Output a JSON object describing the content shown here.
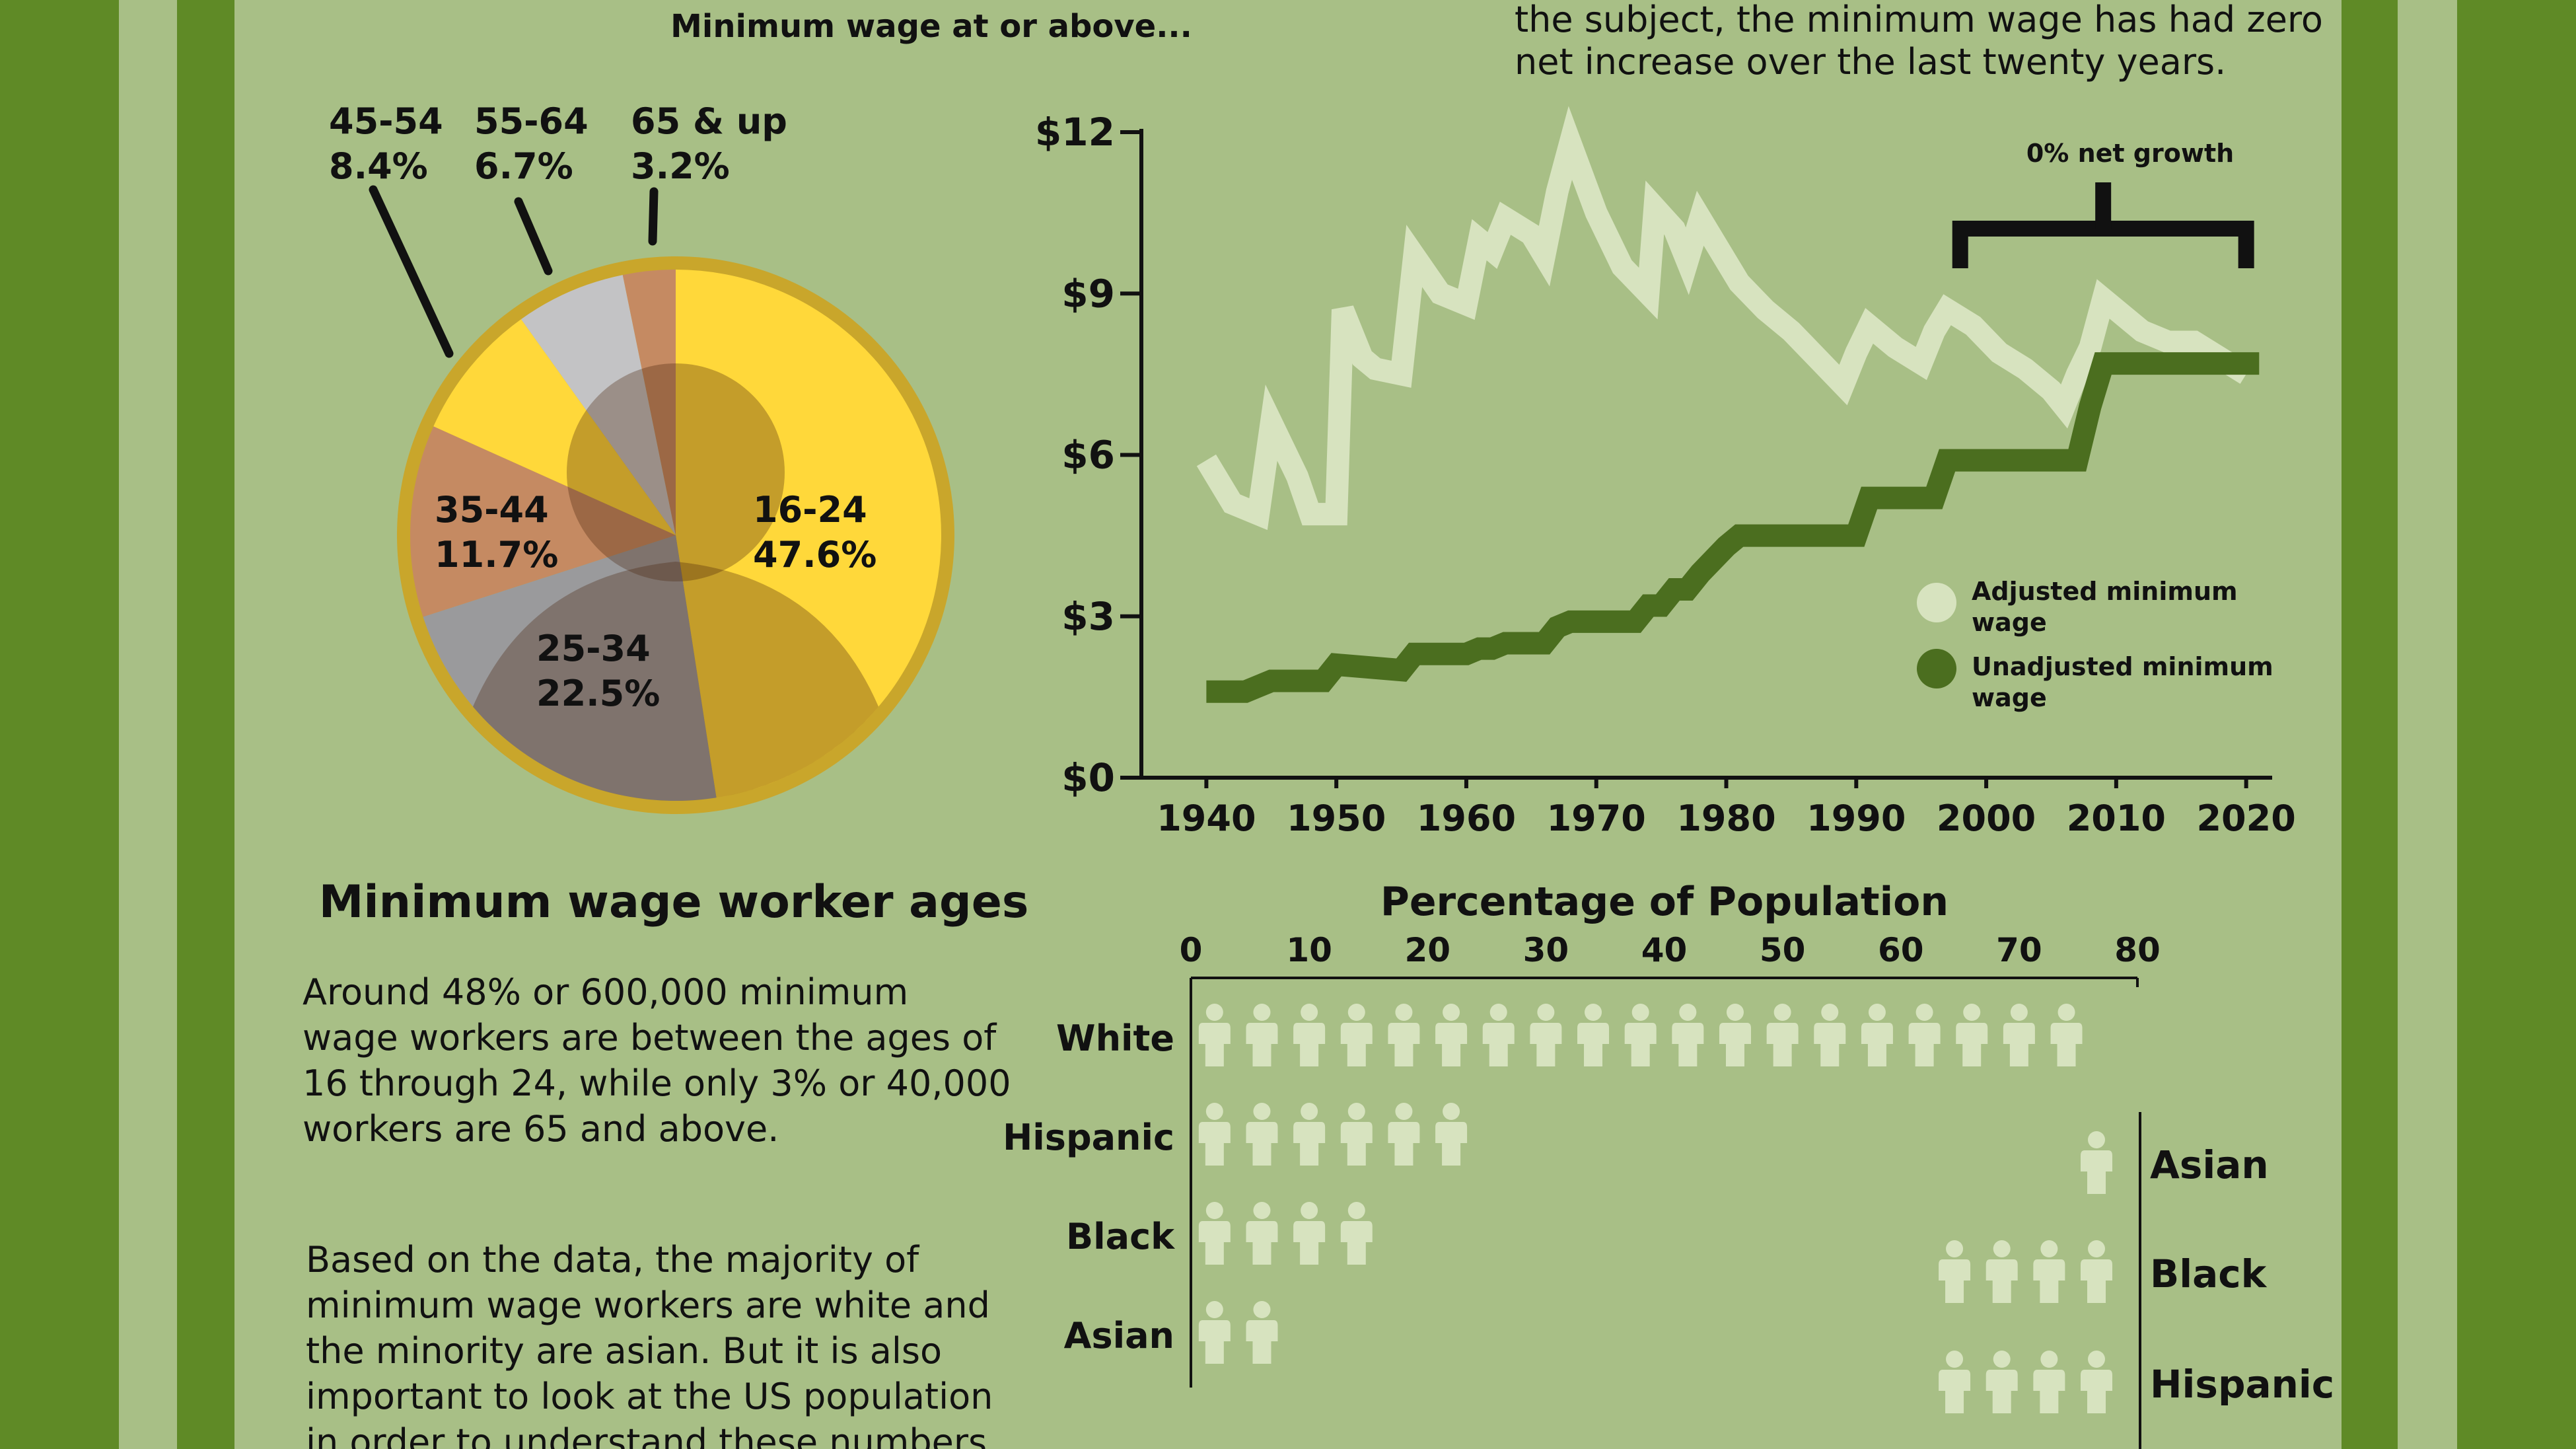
{
  "colors": {
    "background": "#a8bf86",
    "border_dark": "#5f8a26",
    "border_light": "#a8bf86",
    "adjusted_line": "#d7e3bf",
    "unadjusted_line": "#4b6e1f",
    "text": "#111111"
  },
  "header": {
    "pie_heading": "Minimum wage at or above...",
    "line_intro_line1": "the subject, the minimum wage has had zero",
    "line_intro_line2": "net increase over the last twenty years."
  },
  "pie": {
    "title": "Minimum wage worker ages",
    "labels": [
      {
        "age": "16-24",
        "pct": "47.6%"
      },
      {
        "age": "25-34",
        "pct": "22.5%"
      },
      {
        "age": "35-44",
        "pct": "11.7%"
      },
      {
        "age": "45-54",
        "pct": "8.4%"
      },
      {
        "age": "55-64",
        "pct": "6.7%"
      },
      {
        "age": "65 & up",
        "pct": "3.2%"
      }
    ]
  },
  "text_blocks": {
    "ages_lines": [
      "Around 48% or 600,000 minimum",
      "wage workers are between the ages of",
      "16 through 24, while only 3% or 40,000",
      "workers are 65 and above."
    ],
    "race_lines": [
      "Based on the data, the majority of",
      "minimum wage workers are white and",
      "the minority are asian. But it is also",
      "important to look at the US population",
      "in order to understand these numbers."
    ]
  },
  "line_annotation": "0% net growth",
  "bar_title": "Percentage of Population",
  "chart_data": [
    {
      "type": "pie",
      "title": "Minimum wage worker ages",
      "categories": [
        "16-24",
        "25-34",
        "35-44",
        "45-54",
        "55-64",
        "65 & up"
      ],
      "values": [
        47.6,
        22.5,
        11.7,
        8.4,
        6.7,
        3.2
      ],
      "colors": [
        "#ffd83a",
        "#9a9a9c",
        "#c58a62",
        "#ffd83a",
        "#c3c3c5",
        "#c58a62"
      ]
    },
    {
      "type": "line",
      "y_ticks": [
        "$0",
        "$3",
        "$6",
        "$9",
        "$12"
      ],
      "x_ticks": [
        "1940",
        "1950",
        "1960",
        "1970",
        "1980",
        "1990",
        "2000",
        "2010",
        "2020"
      ],
      "xlim": [
        1935,
        2022
      ],
      "ylim": [
        0,
        12
      ],
      "legend_position": "right",
      "series": [
        {
          "name": "Adjusted minimum wage",
          "color": "#d7e3bf",
          "points": [
            [
              1940,
              5.9
            ],
            [
              1942,
              5.1
            ],
            [
              1944,
              4.9
            ],
            [
              1945,
              6.6
            ],
            [
              1947,
              5.6
            ],
            [
              1948,
              4.9
            ],
            [
              1950,
              4.9
            ],
            [
              1950.5,
              8.7
            ],
            [
              1952,
              7.8
            ],
            [
              1953,
              7.6
            ],
            [
              1955,
              7.5
            ],
            [
              1956,
              9.7
            ],
            [
              1958,
              9.0
            ],
            [
              1960,
              8.8
            ],
            [
              1961,
              10.0
            ],
            [
              1962,
              9.8
            ],
            [
              1963,
              10.4
            ],
            [
              1965,
              10.1
            ],
            [
              1966,
              9.7
            ],
            [
              1967,
              10.9
            ],
            [
              1968,
              11.8
            ],
            [
              1970,
              10.5
            ],
            [
              1972,
              9.5
            ],
            [
              1974,
              9.0
            ],
            [
              1974.5,
              10.6
            ],
            [
              1976,
              10.2
            ],
            [
              1977,
              9.6
            ],
            [
              1978,
              10.4
            ],
            [
              1979,
              10.0
            ],
            [
              1980,
              9.6
            ],
            [
              1981,
              9.2
            ],
            [
              1983,
              8.7
            ],
            [
              1985,
              8.3
            ],
            [
              1987,
              7.8
            ],
            [
              1989,
              7.3
            ],
            [
              1990,
              7.9
            ],
            [
              1991,
              8.4
            ],
            [
              1993,
              8.0
            ],
            [
              1995,
              7.7
            ],
            [
              1996,
              8.3
            ],
            [
              1997,
              8.7
            ],
            [
              1999,
              8.4
            ],
            [
              2001,
              7.9
            ],
            [
              2003,
              7.6
            ],
            [
              2005,
              7.2
            ],
            [
              2006,
              6.9
            ],
            [
              2007,
              7.5
            ],
            [
              2008,
              8.0
            ],
            [
              2009,
              8.9
            ],
            [
              2010,
              8.7
            ],
            [
              2012,
              8.3
            ],
            [
              2014,
              8.1
            ],
            [
              2016,
              8.1
            ],
            [
              2018,
              7.8
            ],
            [
              2020,
              7.5
            ]
          ]
        },
        {
          "name": "Unadjusted minimum wage",
          "color": "#4b6e1f",
          "points": [
            [
              1940,
              1.6
            ],
            [
              1943,
              1.6
            ],
            [
              1945,
              1.8
            ],
            [
              1949,
              1.8
            ],
            [
              1950,
              2.1
            ],
            [
              1955,
              2.0
            ],
            [
              1956,
              2.3
            ],
            [
              1960,
              2.3
            ],
            [
              1961,
              2.4
            ],
            [
              1962,
              2.4
            ],
            [
              1963,
              2.5
            ],
            [
              1966,
              2.5
            ],
            [
              1967,
              2.8
            ],
            [
              1968,
              2.9
            ],
            [
              1973,
              2.9
            ],
            [
              1974,
              3.2
            ],
            [
              1975,
              3.2
            ],
            [
              1976,
              3.5
            ],
            [
              1977,
              3.5
            ],
            [
              1978,
              3.8
            ],
            [
              1980,
              4.3
            ],
            [
              1981,
              4.5
            ],
            [
              1990,
              4.5
            ],
            [
              1991,
              5.2
            ],
            [
              1996,
              5.2
            ],
            [
              1997,
              5.9
            ],
            [
              2007,
              5.9
            ],
            [
              2008,
              6.9
            ],
            [
              2009,
              7.7
            ],
            [
              2021,
              7.7
            ]
          ]
        }
      ],
      "annotation": {
        "text": "0% net growth",
        "from": 1998,
        "to": 2020
      }
    },
    {
      "type": "bar",
      "title": "Percentage of Population",
      "orientation": "horizontal",
      "x_ticks": [
        "0",
        "10",
        "20",
        "30",
        "40",
        "50",
        "60",
        "70",
        "80"
      ],
      "xlim": [
        0,
        80
      ],
      "left_panel": {
        "categories": [
          "White",
          "Hispanic",
          "Black",
          "Asian"
        ],
        "values": [
          76,
          24,
          16,
          8
        ]
      },
      "right_panel": {
        "categories": [
          "Asian",
          "Black",
          "Hispanic"
        ],
        "values": [
          4,
          16,
          16
        ]
      },
      "icon": "person-icon",
      "icon_color": "#d7e3bf"
    }
  ]
}
